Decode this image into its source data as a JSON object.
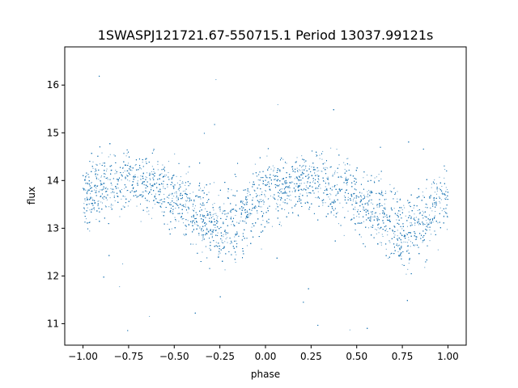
{
  "chart_data": {
    "type": "scatter",
    "title": "1SWASPJ121721.67-550715.1 Period 13037.99121s",
    "xlabel": "phase",
    "ylabel": "flux",
    "xlim": [
      -1.1,
      1.1
    ],
    "ylim": [
      10.55,
      16.8
    ],
    "x_ticks": [
      -1.0,
      -0.75,
      -0.5,
      -0.25,
      0.0,
      0.25,
      0.5,
      0.75,
      1.0
    ],
    "x_tick_labels": [
      "−1.00",
      "−0.75",
      "−0.50",
      "−0.25",
      "0.00",
      "0.25",
      "0.50",
      "0.75",
      "1.00"
    ],
    "y_ticks": [
      11,
      12,
      13,
      14,
      15,
      16
    ],
    "y_tick_labels": [
      "11",
      "12",
      "13",
      "14",
      "15",
      "16"
    ],
    "grid": false,
    "marker_color": "#1f77b4",
    "series": [
      {
        "phase_profile": [
          {
            "phase": -1.0,
            "flux": 13.7
          },
          {
            "phase": -0.9,
            "flux": 13.85
          },
          {
            "phase": -0.75,
            "flux": 14.0
          },
          {
            "phase": -0.6,
            "flux": 13.9
          },
          {
            "phase": -0.5,
            "flux": 13.65
          },
          {
            "phase": -0.4,
            "flux": 13.35
          },
          {
            "phase": -0.3,
            "flux": 13.05
          },
          {
            "phase": -0.22,
            "flux": 12.9
          },
          {
            "phase": -0.15,
            "flux": 13.15
          },
          {
            "phase": -0.05,
            "flux": 13.6
          },
          {
            "phase": 0.0,
            "flux": 13.7
          },
          {
            "phase": 0.1,
            "flux": 13.85
          },
          {
            "phase": 0.25,
            "flux": 14.0
          },
          {
            "phase": 0.4,
            "flux": 13.9
          },
          {
            "phase": 0.5,
            "flux": 13.65
          },
          {
            "phase": 0.6,
            "flux": 13.35
          },
          {
            "phase": 0.7,
            "flux": 13.05
          },
          {
            "phase": 0.78,
            "flux": 12.9
          },
          {
            "phase": 0.85,
            "flux": 13.15
          },
          {
            "phase": 0.95,
            "flux": 13.6
          },
          {
            "phase": 1.0,
            "flux": 13.7
          }
        ],
        "scatter_sigma": 0.33,
        "outlier_range": [
          10.8,
          16.5
        ],
        "n_points": 9000
      }
    ]
  }
}
